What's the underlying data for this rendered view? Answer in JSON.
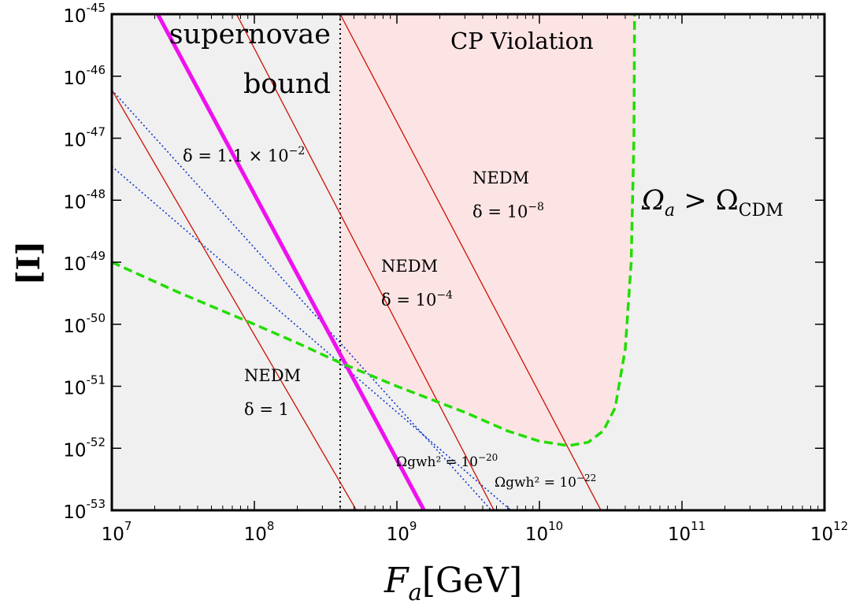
{
  "chart_data": {
    "type": "line",
    "xscale": "log",
    "yscale": "log",
    "xlim": [
      10000000.0,
      1000000000000.0
    ],
    "ylim": [
      1e-53,
      1e-45
    ],
    "grid": false,
    "xlabel_main": "F",
    "xlabel_sub": "a",
    "xlabel_unit": "[GeV]",
    "ylabel": "[I]",
    "x_ticks": [
      {
        "base": "10",
        "exp": "7"
      },
      {
        "base": "10",
        "exp": "8"
      },
      {
        "base": "10",
        "exp": "9"
      },
      {
        "base": "10",
        "exp": "10"
      },
      {
        "base": "10",
        "exp": "11"
      },
      {
        "base": "10",
        "exp": "12"
      }
    ],
    "y_ticks": [
      {
        "base": "10",
        "exp": "-45"
      },
      {
        "base": "10",
        "exp": "-46"
      },
      {
        "base": "10",
        "exp": "-47"
      },
      {
        "base": "10",
        "exp": "-48"
      },
      {
        "base": "10",
        "exp": "-49"
      },
      {
        "base": "10",
        "exp": "-50"
      },
      {
        "base": "10",
        "exp": "-51"
      },
      {
        "base": "10",
        "exp": "-52"
      },
      {
        "base": "10",
        "exp": "-53"
      }
    ],
    "regions": {
      "excluded_color": "#f0f0f0",
      "cp_color": "#fde4e4",
      "cp_label": "CP Violation",
      "sn_label_1": "supernovae",
      "sn_label_2": "bound",
      "omega_label": "Ωa > ΩCDM"
    },
    "supernova_bound_x": 400000000.0,
    "series": [
      {
        "id": "relic_dm",
        "style": "dashed",
        "color": "#22dd00",
        "points": [
          [
            10000000.0,
            1e-49
          ],
          [
            30000000.0,
            3.2e-50
          ],
          [
            100000000.0,
            1e-50
          ],
          [
            200000000.0,
            5e-51
          ],
          [
            400000000.0,
            2.4e-51
          ],
          [
            1000000000.0,
            1e-51
          ],
          [
            3000000000.0,
            3.8e-52
          ],
          [
            6000000000.0,
            1.9e-52
          ],
          [
            10000000000.0,
            1.3e-52
          ],
          [
            16000000000.0,
            1.1e-52
          ],
          [
            22000000000.0,
            1.25e-52
          ],
          [
            28000000000.0,
            1.9e-52
          ],
          [
            34000000000.0,
            4.5e-52
          ],
          [
            40000000000.0,
            4e-51
          ],
          [
            44000000000.0,
            1e-49
          ],
          [
            46000000000.0,
            1e-47
          ],
          [
            46500000000.0,
            1e-45
          ]
        ]
      },
      {
        "id": "delta_1p1e-2",
        "style": "solid-thick",
        "color": "#ee11ee",
        "points": [
          [
            21000000.0,
            1e-45
          ],
          [
            1550000000.0,
            1e-53
          ]
        ]
      },
      {
        "id": "nedm_delta_1",
        "style": "solid",
        "color": "#cc1100",
        "points": [
          [
            10000000.0,
            6e-47
          ],
          [
            520000000.0,
            1e-53
          ]
        ]
      },
      {
        "id": "nedm_delta_1e-4",
        "style": "solid",
        "color": "#cc1100",
        "points": [
          [
            75000000.0,
            1e-45
          ],
          [
            4800000000.0,
            1e-53
          ]
        ]
      },
      {
        "id": "nedm_delta_1e-8",
        "style": "solid",
        "color": "#cc1100",
        "points": [
          [
            400000000.0,
            1e-45
          ],
          [
            27000000000.0,
            1e-53
          ]
        ]
      },
      {
        "id": "gw_1e-20",
        "style": "dotted",
        "color": "#1133cc",
        "points": [
          [
            10000000.0,
            6e-47
          ],
          [
            4600000000.0,
            1e-53
          ]
        ]
      },
      {
        "id": "gw_1e-22",
        "style": "dotted",
        "color": "#1133cc",
        "points": [
          [
            10000000.0,
            3.5e-48
          ],
          [
            6300000000.0,
            1e-53
          ]
        ]
      }
    ],
    "annotations": [
      {
        "id": "ann-delta-magenta",
        "text": "δ = 1.1 × 10",
        "sup": "−2"
      },
      {
        "id": "ann-nedm-8-title",
        "text": "NEDM"
      },
      {
        "id": "ann-nedm-8-delta",
        "text": "δ = 10",
        "sup": "−8"
      },
      {
        "id": "ann-nedm-4-title",
        "text": "NEDM"
      },
      {
        "id": "ann-nedm-4-delta",
        "text": "δ = 10",
        "sup": "−4"
      },
      {
        "id": "ann-nedm-1-title",
        "text": "NEDM"
      },
      {
        "id": "ann-nedm-1-delta",
        "text": "δ = 1"
      },
      {
        "id": "ann-gw-20",
        "text": "Ωgwh² = 10",
        "sup": "−20"
      },
      {
        "id": "ann-gw-22",
        "text": "Ωgwh² = 10",
        "sup": "−22"
      }
    ]
  }
}
